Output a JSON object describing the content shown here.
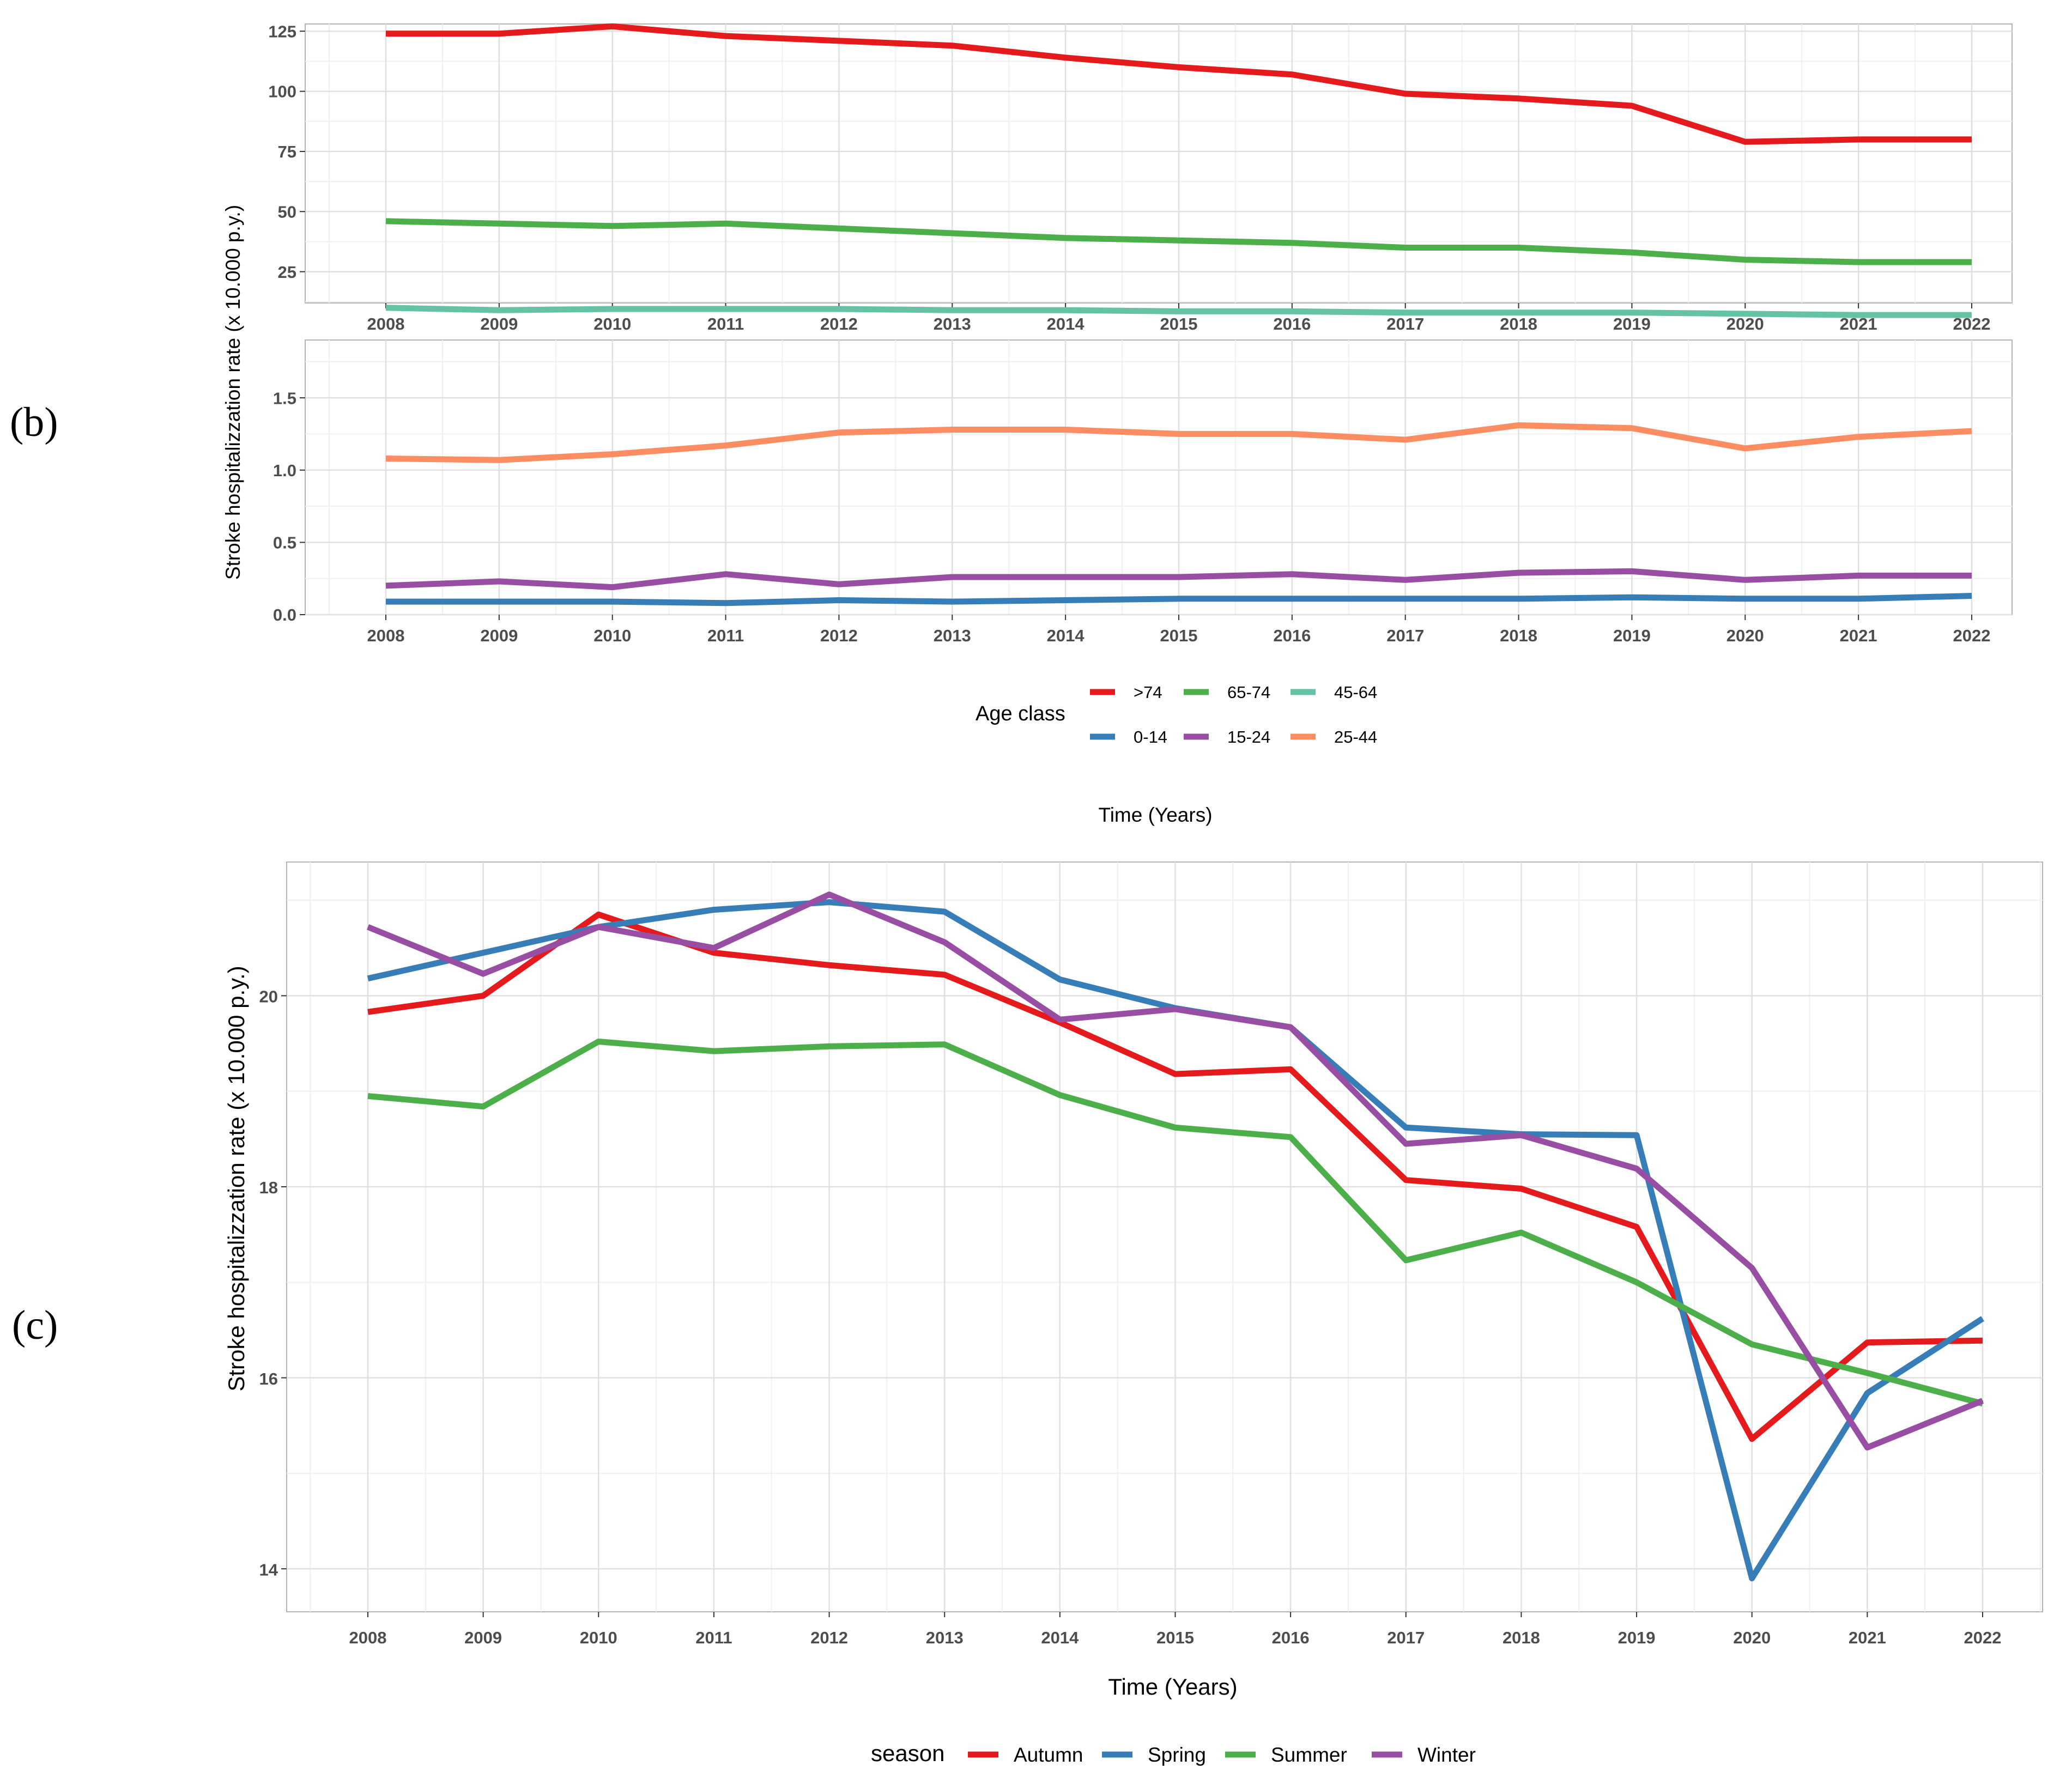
{
  "panel_b": {
    "tag": "(b)",
    "ylabel": "Stroke hospitalizzation rate (x 10.000 p.y.)",
    "xlabel": "Time (Years)",
    "legend_title": "Age class",
    "legend_items": [
      ">74",
      "65-74",
      "45-64",
      "0-14",
      "15-24",
      "25-44"
    ]
  },
  "panel_c": {
    "tag": "(c)",
    "ylabel": "Stroke hospitalizzation rate (x 10.000 p.y.)",
    "xlabel": "Time (Years)",
    "legend_title": "season"
  },
  "chart_data": [
    {
      "type": "line",
      "panel": "b-top",
      "x": [
        "2008",
        "2009",
        "2010",
        "2011",
        "2012",
        "2013",
        "2014",
        "2015",
        "2016",
        "2017",
        "2018",
        "2019",
        "2020",
        "2021",
        "2022"
      ],
      "ylim": [
        12,
        128
      ],
      "yticks": [
        25,
        50,
        75,
        100,
        125
      ],
      "grid": true,
      "series": [
        {
          "name": ">74",
          "color": "#e41a1c",
          "values": [
            124,
            124,
            127,
            123,
            121,
            119,
            114,
            110,
            107,
            99,
            97,
            94,
            79,
            80,
            80
          ]
        },
        {
          "name": "65-74",
          "color": "#4daf4a",
          "values": [
            46,
            45,
            44,
            45,
            43,
            41,
            39,
            38,
            37,
            35,
            35,
            33,
            30,
            29,
            29
          ]
        },
        {
          "name": "45-64",
          "color": "#66c2a5",
          "values": [
            10,
            9,
            9.5,
            9.5,
            9.5,
            9,
            9,
            8.5,
            8.5,
            8,
            8,
            8,
            7.5,
            7,
            7
          ]
        }
      ]
    },
    {
      "type": "line",
      "panel": "b-bottom",
      "x": [
        "2008",
        "2009",
        "2010",
        "2011",
        "2012",
        "2013",
        "2014",
        "2015",
        "2016",
        "2017",
        "2018",
        "2019",
        "2020",
        "2021",
        "2022"
      ],
      "ylim": [
        0,
        1.9
      ],
      "yticks": [
        0.0,
        0.5,
        1.0,
        1.5
      ],
      "ytick_labels": [
        "0.0",
        "0.5",
        "1.0",
        "1.5"
      ],
      "grid": true,
      "series": [
        {
          "name": "25-44",
          "color": "#fc8d62",
          "values": [
            1.08,
            1.07,
            1.11,
            1.17,
            1.26,
            1.28,
            1.28,
            1.25,
            1.25,
            1.21,
            1.31,
            1.29,
            1.15,
            1.23,
            1.27
          ]
        },
        {
          "name": "15-24",
          "color": "#984ea3",
          "values": [
            0.2,
            0.23,
            0.19,
            0.28,
            0.21,
            0.26,
            0.26,
            0.26,
            0.28,
            0.24,
            0.29,
            0.3,
            0.24,
            0.27,
            0.27
          ]
        },
        {
          "name": "0-14",
          "color": "#377eb8",
          "values": [
            0.09,
            0.09,
            0.09,
            0.08,
            0.1,
            0.09,
            0.1,
            0.11,
            0.11,
            0.11,
            0.11,
            0.12,
            0.11,
            0.11,
            0.13
          ]
        }
      ]
    },
    {
      "type": "line",
      "panel": "c",
      "x": [
        "2008",
        "2009",
        "2010",
        "2011",
        "2012",
        "2013",
        "2014",
        "2015",
        "2016",
        "2017",
        "2018",
        "2019",
        "2020",
        "2021",
        "2022"
      ],
      "ylim": [
        13.55,
        21.4
      ],
      "yticks": [
        14,
        16,
        18,
        20
      ],
      "grid": true,
      "series": [
        {
          "name": "Autumn",
          "color": "#e41a1c",
          "values": [
            19.83,
            20.0,
            20.85,
            20.45,
            20.32,
            20.22,
            19.72,
            19.18,
            19.23,
            18.07,
            17.98,
            17.58,
            15.36,
            16.37,
            16.39
          ]
        },
        {
          "name": "Spring",
          "color": "#377eb8",
          "values": [
            20.18,
            20.45,
            20.72,
            20.9,
            20.98,
            20.88,
            20.17,
            19.87,
            19.67,
            18.62,
            18.55,
            18.54,
            13.9,
            15.84,
            16.62
          ]
        },
        {
          "name": "Summer",
          "color": "#4daf4a",
          "values": [
            18.95,
            18.84,
            19.52,
            19.42,
            19.47,
            19.49,
            18.96,
            18.62,
            18.52,
            17.23,
            17.52,
            17.0,
            16.35,
            16.05,
            15.73
          ]
        },
        {
          "name": "Winter",
          "color": "#984ea3",
          "values": [
            20.72,
            20.23,
            20.72,
            20.5,
            21.06,
            20.56,
            19.75,
            19.86,
            19.67,
            18.45,
            18.54,
            18.19,
            17.15,
            15.27,
            15.76
          ]
        }
      ]
    }
  ]
}
